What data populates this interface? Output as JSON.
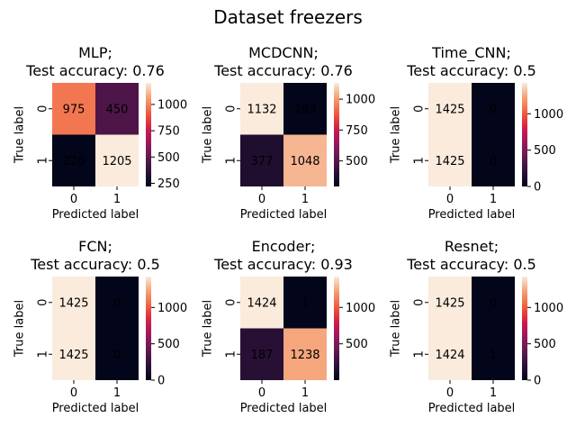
{
  "figure": {
    "title": "Dataset freezers"
  },
  "chart_data": [
    {
      "type": "heatmap",
      "title": "MLP;\nTest accuracy: 0.76",
      "xlabel": "Predicted label",
      "ylabel": "True label",
      "x_ticks": [
        "0",
        "1"
      ],
      "y_ticks": [
        "0",
        "1"
      ],
      "matrix": [
        [
          975,
          450
        ],
        [
          220,
          1205
        ]
      ],
      "colorbar": {
        "ticks": [
          250,
          500,
          750,
          1000
        ],
        "range": [
          220,
          1205
        ]
      }
    },
    {
      "type": "heatmap",
      "title": "MCDCNN;\nTest accuracy: 0.76",
      "xlabel": "Predicted label",
      "ylabel": "True label",
      "x_ticks": [
        "0",
        "1"
      ],
      "y_ticks": [
        "0",
        "1"
      ],
      "matrix": [
        [
          1132,
          293
        ],
        [
          377,
          1048
        ]
      ],
      "colorbar": {
        "ticks": [
          500,
          750,
          1000
        ],
        "range": [
          293,
          1132
        ]
      }
    },
    {
      "type": "heatmap",
      "title": "Time_CNN;\nTest accuracy: 0.5",
      "xlabel": "Predicted label",
      "ylabel": "True label",
      "x_ticks": [
        "0",
        "1"
      ],
      "y_ticks": [
        "0",
        "1"
      ],
      "matrix": [
        [
          1425,
          0
        ],
        [
          1425,
          0
        ]
      ],
      "colorbar": {
        "ticks": [
          0,
          500,
          1000
        ],
        "range": [
          0,
          1425
        ]
      }
    },
    {
      "type": "heatmap",
      "title": "FCN;\nTest accuracy: 0.5",
      "xlabel": "Predicted label",
      "ylabel": "True label",
      "x_ticks": [
        "0",
        "1"
      ],
      "y_ticks": [
        "0",
        "1"
      ],
      "matrix": [
        [
          1425,
          0
        ],
        [
          1425,
          0
        ]
      ],
      "colorbar": {
        "ticks": [
          0,
          500,
          1000
        ],
        "range": [
          0,
          1425
        ]
      }
    },
    {
      "type": "heatmap",
      "title": "Encoder;\nTest accuracy: 0.93",
      "xlabel": "Predicted label",
      "ylabel": "True label",
      "x_ticks": [
        "0",
        "1"
      ],
      "y_ticks": [
        "0",
        "1"
      ],
      "matrix": [
        [
          1424,
          1
        ],
        [
          187,
          1238
        ]
      ],
      "colorbar": {
        "ticks": [
          500,
          1000
        ],
        "range": [
          1,
          1424
        ]
      }
    },
    {
      "type": "heatmap",
      "title": "Resnet;\nTest accuracy: 0.5",
      "xlabel": "Predicted label",
      "ylabel": "True label",
      "x_ticks": [
        "0",
        "1"
      ],
      "y_ticks": [
        "0",
        "1"
      ],
      "matrix": [
        [
          1425,
          0
        ],
        [
          1424,
          1
        ]
      ],
      "colorbar": {
        "ticks": [
          0,
          500,
          1000
        ],
        "range": [
          0,
          1425
        ]
      }
    }
  ]
}
